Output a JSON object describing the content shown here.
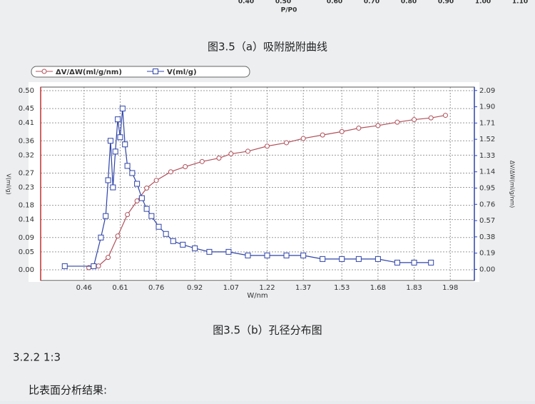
{
  "top_axis": {
    "ticks": [
      "0.40",
      "0.50",
      "0.60",
      "0.70",
      "0.80",
      "0.90",
      "1.00",
      "1.10"
    ],
    "label": "P/P0"
  },
  "caption_a": "图3.5（a）吸附脱附曲线",
  "chart_data": {
    "type": "line",
    "x_label": "W/nm",
    "y_label": "V(ml/g)",
    "y2_label": "ΔV/ΔW(ml/g/nm)",
    "xlim": [
      0.28,
      2.08
    ],
    "xticks": [
      0.46,
      0.61,
      0.76,
      0.92,
      1.07,
      1.22,
      1.37,
      1.53,
      1.68,
      1.83,
      1.98
    ],
    "ylim": [
      -0.03,
      0.51
    ],
    "yticks": [
      {
        "value": 0,
        "label": "0.00"
      },
      0.05,
      0.09,
      0.14,
      0.18,
      0.23,
      0.27,
      0.32,
      0.36,
      0.41,
      0.45,
      {
        "value": 0.5,
        "label": "0.50"
      }
    ],
    "y2lim": [
      -0.13,
      2.13
    ],
    "y2ticks": [
      {
        "value": 0,
        "label": "0.00"
      },
      0.19,
      0.38,
      0.57,
      0.76,
      0.95,
      1.14,
      1.33,
      1.52,
      1.71,
      {
        "value": 1.9,
        "label": "1.90"
      },
      2.09
    ],
    "grid": true,
    "series": [
      {
        "name": "ΔV/ΔW(ml/g/nm)",
        "color": "#b0505a",
        "marker": "circle",
        "axis": "y2",
        "x": [
          0.48,
          0.52,
          0.56,
          0.6,
          0.64,
          0.68,
          0.72,
          0.76,
          0.82,
          0.88,
          0.95,
          1.02,
          1.07,
          1.14,
          1.22,
          1.3,
          1.37,
          1.45,
          1.53,
          1.6,
          1.68,
          1.76,
          1.83,
          1.9,
          1.96
        ],
        "values": [
          0.02,
          0.04,
          0.14,
          0.39,
          0.64,
          0.8,
          0.95,
          1.04,
          1.14,
          1.2,
          1.26,
          1.3,
          1.35,
          1.38,
          1.44,
          1.48,
          1.53,
          1.57,
          1.61,
          1.65,
          1.68,
          1.72,
          1.75,
          1.77,
          1.8
        ]
      },
      {
        "name": "V(ml/g)",
        "color": "#2f44a8",
        "marker": "square",
        "axis": "y",
        "x": [
          0.38,
          0.5,
          0.53,
          0.55,
          0.56,
          0.57,
          0.58,
          0.59,
          0.6,
          0.61,
          0.62,
          0.63,
          0.64,
          0.66,
          0.68,
          0.7,
          0.72,
          0.74,
          0.77,
          0.8,
          0.83,
          0.87,
          0.92,
          0.98,
          1.06,
          1.14,
          1.22,
          1.3,
          1.37,
          1.45,
          1.53,
          1.6,
          1.68,
          1.76,
          1.83,
          1.9
        ],
        "values": [
          0.01,
          0.01,
          0.09,
          0.15,
          0.25,
          0.36,
          0.23,
          0.33,
          0.42,
          0.37,
          0.45,
          0.35,
          0.29,
          0.27,
          0.24,
          0.2,
          0.17,
          0.15,
          0.12,
          0.1,
          0.08,
          0.07,
          0.06,
          0.05,
          0.05,
          0.04,
          0.04,
          0.04,
          0.04,
          0.03,
          0.03,
          0.03,
          0.03,
          0.02,
          0.02,
          0.02
        ]
      }
    ]
  },
  "caption_b": "图3.5（b）孔径分布图",
  "section": "3.2.2 1:3",
  "paragraph": "比表面分析结果:"
}
